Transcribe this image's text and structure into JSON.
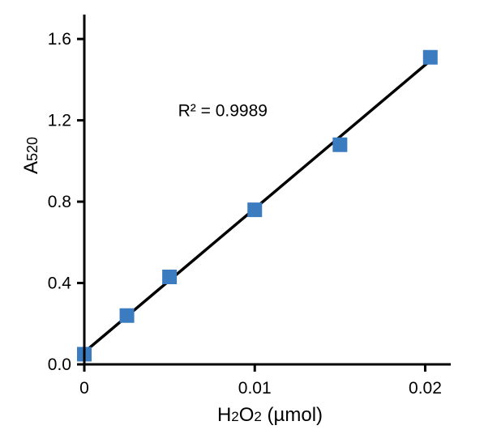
{
  "chart_data": {
    "type": "scatter",
    "title": "",
    "xlabel": {
      "base": "H",
      "sub1": "2",
      "mid": "O",
      "sub2": "2",
      "rest": " (µmol)"
    },
    "ylabel": {
      "base": "A",
      "sub": "520"
    },
    "xlim": [
      0,
      0.0215
    ],
    "ylim": [
      0,
      1.72
    ],
    "x_ticks": [
      {
        "value": 0,
        "label": "0"
      },
      {
        "value": 0.01,
        "label": "0.01"
      },
      {
        "value": 0.02,
        "label": "0.02"
      }
    ],
    "y_ticks": [
      {
        "value": 0,
        "label": "0.0"
      },
      {
        "value": 0.4,
        "label": "0.4"
      },
      {
        "value": 0.8,
        "label": "0.8"
      },
      {
        "value": 1.2,
        "label": "1.2"
      },
      {
        "value": 1.6,
        "label": "1.6"
      }
    ],
    "series": [
      {
        "marker": "square",
        "color": "#3b7bbf",
        "points": [
          {
            "x": 0,
            "y": 0.05
          },
          {
            "x": 0.0025,
            "y": 0.24
          },
          {
            "x": 0.005,
            "y": 0.43
          },
          {
            "x": 0.01,
            "y": 0.76
          },
          {
            "x": 0.015,
            "y": 1.08
          },
          {
            "x": 0.0203,
            "y": 1.51
          }
        ]
      }
    ],
    "fit_line": {
      "color": "#000000",
      "x": [
        0,
        0.02025
      ],
      "y": [
        0.06,
        1.49
      ]
    },
    "annotation": {
      "text": "R² = 0.9989",
      "x": 0.0055,
      "y": 1.22
    },
    "grid": false,
    "legend": "none"
  }
}
